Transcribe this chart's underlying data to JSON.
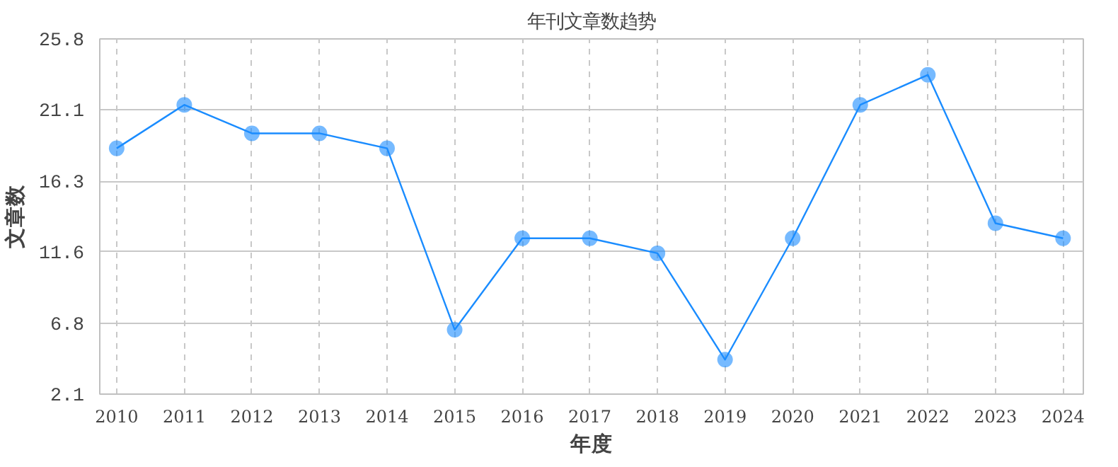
{
  "chart_data": {
    "type": "line",
    "title": "年刊文章数趋势",
    "xlabel": "年度",
    "ylabel": "文章数",
    "categories": [
      "2010",
      "2011",
      "2012",
      "2013",
      "2014",
      "2015",
      "2016",
      "2017",
      "2018",
      "2019",
      "2020",
      "2021",
      "2022",
      "2023",
      "2024"
    ],
    "series": [
      {
        "color": "#1a8cff",
        "values": [
          18.5,
          21.4,
          19.5,
          19.5,
          18.5,
          6.4,
          12.5,
          12.5,
          11.5,
          4.4,
          12.5,
          21.4,
          23.4,
          13.5,
          12.5
        ]
      }
    ],
    "ylim": [
      2.1,
      25.8
    ],
    "yticks": [
      2.1,
      6.8,
      11.6,
      16.3,
      21.1,
      25.8
    ],
    "grid": true,
    "marker": "circle",
    "line_style": "solid"
  }
}
